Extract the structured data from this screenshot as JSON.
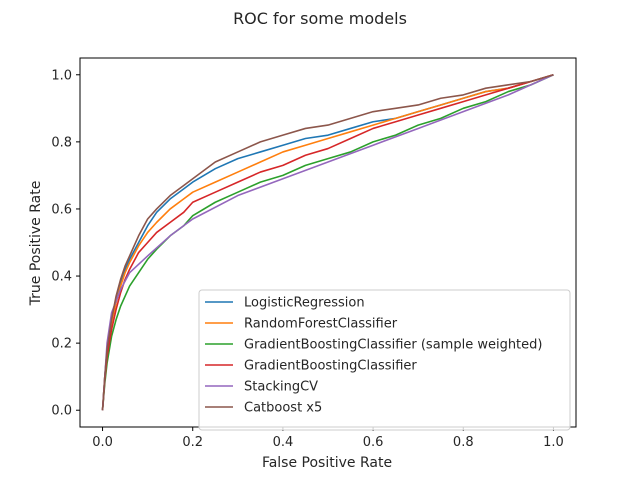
{
  "chart_data": {
    "type": "line",
    "title": "ROC for some models",
    "xlabel": "False Positive Rate",
    "ylabel": "True Positive Rate",
    "xlim": [
      -0.05,
      1.05
    ],
    "ylim": [
      -0.05,
      1.05
    ],
    "xticks": [
      "0.0",
      "0.2",
      "0.4",
      "0.6",
      "0.8",
      "1.0"
    ],
    "yticks": [
      "0.0",
      "0.2",
      "0.4",
      "0.6",
      "0.8",
      "1.0"
    ],
    "grid": false,
    "legend_position": "lower-right",
    "series": [
      {
        "name": "LogisticRegression",
        "color": "#1f77b4",
        "x": [
          0,
          0.005,
          0.01,
          0.02,
          0.03,
          0.04,
          0.05,
          0.06,
          0.08,
          0.1,
          0.12,
          0.15,
          0.18,
          0.2,
          0.25,
          0.3,
          0.35,
          0.4,
          0.45,
          0.5,
          0.55,
          0.6,
          0.65,
          0.7,
          0.75,
          0.8,
          0.85,
          0.9,
          0.95,
          1.0
        ],
        "y": [
          0,
          0.1,
          0.18,
          0.27,
          0.33,
          0.38,
          0.42,
          0.45,
          0.5,
          0.55,
          0.59,
          0.63,
          0.66,
          0.68,
          0.72,
          0.75,
          0.77,
          0.79,
          0.81,
          0.82,
          0.84,
          0.86,
          0.87,
          0.89,
          0.91,
          0.93,
          0.95,
          0.96,
          0.98,
          1.0
        ]
      },
      {
        "name": "RandomForestClassifier",
        "color": "#ff7f0e",
        "x": [
          0,
          0.005,
          0.01,
          0.02,
          0.03,
          0.04,
          0.05,
          0.06,
          0.08,
          0.1,
          0.12,
          0.15,
          0.18,
          0.2,
          0.25,
          0.3,
          0.35,
          0.4,
          0.45,
          0.5,
          0.55,
          0.6,
          0.65,
          0.7,
          0.75,
          0.8,
          0.85,
          0.9,
          0.95,
          1.0
        ],
        "y": [
          0,
          0.1,
          0.17,
          0.26,
          0.32,
          0.37,
          0.41,
          0.44,
          0.49,
          0.53,
          0.56,
          0.6,
          0.63,
          0.65,
          0.68,
          0.71,
          0.74,
          0.77,
          0.79,
          0.81,
          0.83,
          0.85,
          0.87,
          0.89,
          0.91,
          0.93,
          0.95,
          0.96,
          0.98,
          1.0
        ]
      },
      {
        "name": "GradientBoostingClassifier (sample weighted)",
        "color": "#2ca02c",
        "x": [
          0,
          0.005,
          0.01,
          0.02,
          0.03,
          0.04,
          0.05,
          0.06,
          0.08,
          0.1,
          0.12,
          0.15,
          0.18,
          0.2,
          0.25,
          0.3,
          0.35,
          0.4,
          0.45,
          0.5,
          0.55,
          0.6,
          0.65,
          0.7,
          0.75,
          0.8,
          0.85,
          0.9,
          0.95,
          1.0
        ],
        "y": [
          0,
          0.08,
          0.14,
          0.22,
          0.27,
          0.31,
          0.34,
          0.37,
          0.41,
          0.45,
          0.48,
          0.52,
          0.55,
          0.58,
          0.62,
          0.65,
          0.68,
          0.7,
          0.73,
          0.75,
          0.77,
          0.8,
          0.82,
          0.85,
          0.87,
          0.9,
          0.92,
          0.95,
          0.97,
          1.0
        ]
      },
      {
        "name": "GradientBoostingClassifier",
        "color": "#d62728",
        "x": [
          0,
          0.005,
          0.01,
          0.02,
          0.03,
          0.04,
          0.05,
          0.06,
          0.08,
          0.1,
          0.12,
          0.15,
          0.18,
          0.2,
          0.25,
          0.3,
          0.35,
          0.4,
          0.45,
          0.5,
          0.55,
          0.6,
          0.65,
          0.7,
          0.75,
          0.8,
          0.85,
          0.9,
          0.95,
          1.0
        ],
        "y": [
          0,
          0.09,
          0.16,
          0.24,
          0.3,
          0.35,
          0.39,
          0.42,
          0.47,
          0.5,
          0.53,
          0.56,
          0.59,
          0.62,
          0.65,
          0.68,
          0.71,
          0.73,
          0.76,
          0.78,
          0.81,
          0.84,
          0.86,
          0.88,
          0.9,
          0.92,
          0.94,
          0.96,
          0.98,
          1.0
        ]
      },
      {
        "name": "StackingCV",
        "color": "#9467bd",
        "x": [
          0,
          0.01,
          0.02,
          0.04,
          0.06,
          0.1,
          0.15,
          0.2,
          0.3,
          0.4,
          0.5,
          0.6,
          0.7,
          0.8,
          0.9,
          1.0
        ],
        "y": [
          0,
          0.2,
          0.29,
          0.36,
          0.41,
          0.46,
          0.52,
          0.57,
          0.64,
          0.69,
          0.74,
          0.79,
          0.84,
          0.89,
          0.94,
          1.0
        ]
      },
      {
        "name": "Catboost x5",
        "color": "#8c564b",
        "x": [
          0,
          0.005,
          0.01,
          0.02,
          0.03,
          0.04,
          0.05,
          0.06,
          0.08,
          0.1,
          0.12,
          0.15,
          0.18,
          0.2,
          0.25,
          0.3,
          0.35,
          0.4,
          0.45,
          0.5,
          0.55,
          0.6,
          0.65,
          0.7,
          0.75,
          0.8,
          0.85,
          0.9,
          0.95,
          1.0
        ],
        "y": [
          0,
          0.1,
          0.18,
          0.27,
          0.34,
          0.39,
          0.43,
          0.46,
          0.52,
          0.57,
          0.6,
          0.64,
          0.67,
          0.69,
          0.74,
          0.77,
          0.8,
          0.82,
          0.84,
          0.85,
          0.87,
          0.89,
          0.9,
          0.91,
          0.93,
          0.94,
          0.96,
          0.97,
          0.98,
          1.0
        ]
      }
    ]
  }
}
